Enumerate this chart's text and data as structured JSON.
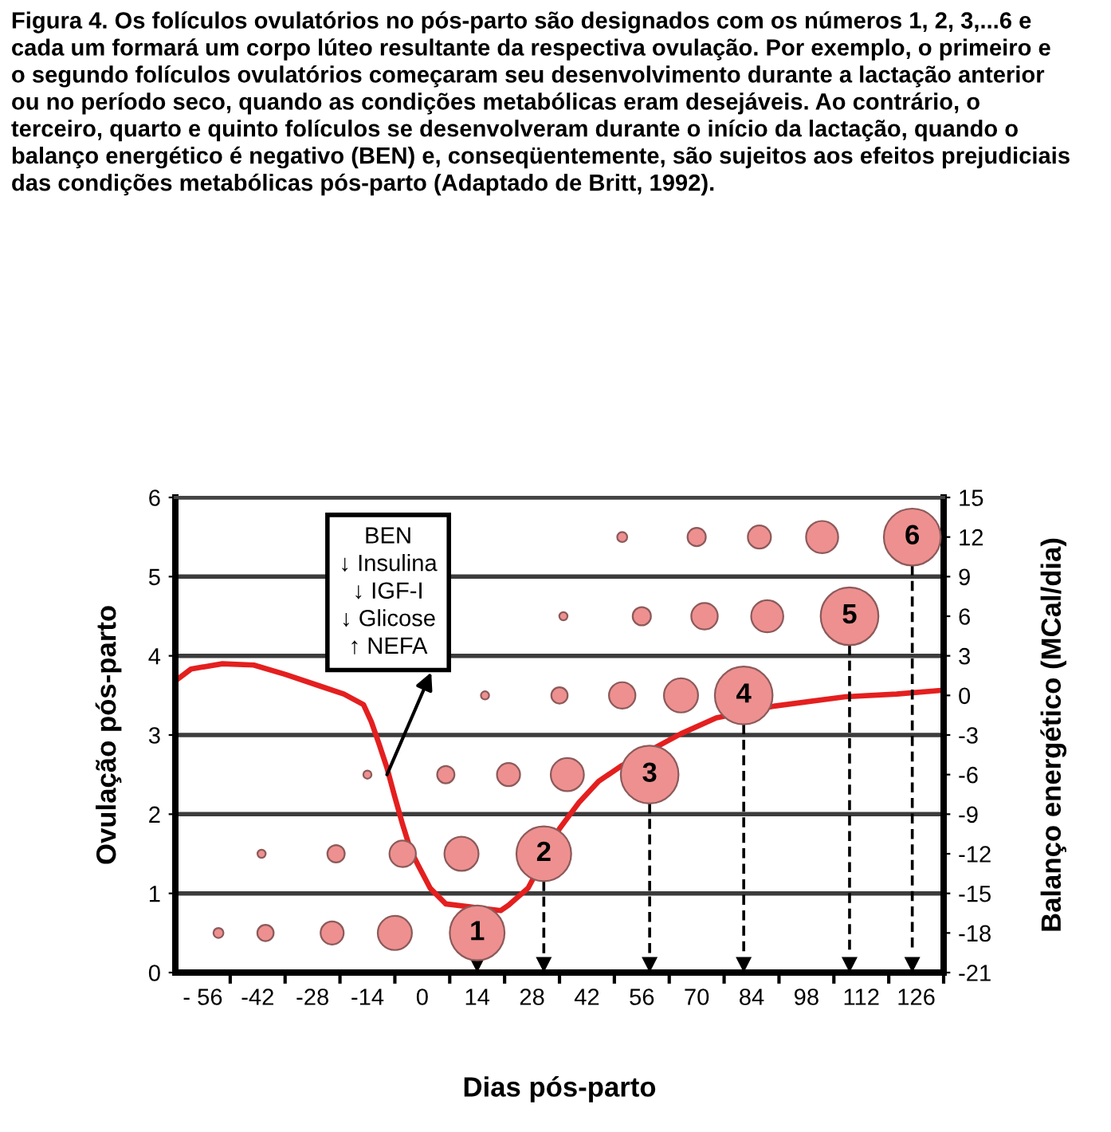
{
  "chart_data": {
    "type": "bubble",
    "title": "Figura 4. Os folículos ovulatórios no pós-parto são designados com os números 1, 2, 3,...6 e cada um formará um corpo lúteo resultante da respectiva ovulação. Por exemplo, o primeiro e o segundo folículos ovulatórios começaram seu desenvolvimento durante a lactação anterior ou no período seco, quando as condições metabólicas eram desejáveis. Ao contrário, o terceiro, quarto e quinto folículos se desenvolveram durante o início da lactação, quando o balanço energético é negativo (BEN) e, conseqüentemente, são sujeitos aos efeitos prejudiciais das condições metabólicas pós-parto (Adaptado de Britt, 1992).",
    "xlabel": "Dias pós-parto",
    "ylabel": "Ovulação pós-parto",
    "y2label": "Balanço energético (MCal/dia)",
    "xlim": [
      -63,
      133
    ],
    "xticks": [
      {
        "value": -56,
        "label": "- 56"
      },
      {
        "value": -49,
        "label": null
      },
      -42,
      {
        "value": -35,
        "label": null
      },
      -28,
      {
        "value": -21,
        "label": null
      },
      -14,
      {
        "value": -7,
        "label": null
      },
      0,
      {
        "value": 7,
        "label": null
      },
      14,
      {
        "value": 21,
        "label": null
      },
      28,
      {
        "value": 35,
        "label": null
      },
      42,
      {
        "value": 49,
        "label": null
      },
      56,
      {
        "value": 63,
        "label": null
      },
      70,
      {
        "value": 77,
        "label": null
      },
      84,
      {
        "value": 91,
        "label": null
      },
      98,
      {
        "value": 105,
        "label": null
      },
      112,
      {
        "value": 119,
        "label": null
      },
      126,
      {
        "value": 133,
        "label": null
      }
    ],
    "ylim": [
      0,
      6
    ],
    "yticks": [
      0,
      1,
      2,
      3,
      4,
      5,
      6
    ],
    "y2lim": [
      -21,
      15
    ],
    "y2ticks": [
      -21,
      -18,
      -15,
      -12,
      -9,
      -6,
      -3,
      0,
      3,
      6,
      9,
      12,
      15
    ],
    "grid": "y",
    "series": [
      {
        "marker": "circle",
        "color": "#ee9090",
        "x": [
          -52,
          -40,
          -23,
          -7,
          14,
          -41,
          -22,
          -5,
          10,
          31,
          -14,
          6,
          22,
          37,
          58,
          16,
          35,
          51,
          66,
          82,
          36,
          56,
          72,
          88,
          109,
          51,
          70,
          86,
          102,
          125
        ],
        "values": [
          0.5,
          0.5,
          0.5,
          0.5,
          0.5,
          1.5,
          1.5,
          1.5,
          1.5,
          1.5,
          2.5,
          2.5,
          2.5,
          2.5,
          2.5,
          3.5,
          3.5,
          3.5,
          3.5,
          3.5,
          4.5,
          4.5,
          4.5,
          4.5,
          4.5,
          5.5,
          5.5,
          5.5,
          5.5,
          5.5
        ],
        "sizes": [
          0.03,
          0.08,
          0.16,
          0.35,
          0.9,
          0.02,
          0.09,
          0.21,
          0.35,
          0.9,
          0.02,
          0.09,
          0.16,
          0.33,
          1,
          0.02,
          0.08,
          0.21,
          0.35,
          1,
          0.02,
          0.1,
          0.21,
          0.31,
          1,
          0.03,
          0.1,
          0.16,
          0.31,
          0.97
        ]
      },
      {
        "type": "line",
        "axis": "y2",
        "line_style": "solid",
        "color": "#e41f1f",
        "x": [
          -63,
          -59,
          -51,
          -43,
          -35,
          -26,
          -20,
          -15,
          -13,
          -11,
          -9,
          -7,
          -5,
          -3,
          -1,
          2,
          6,
          20,
          22,
          27,
          35,
          40,
          45,
          51,
          66,
          75,
          90,
          108,
          121,
          133
        ],
        "values": [
          1.1,
          2.0,
          2.4,
          2.3,
          1.6,
          0.7,
          0.1,
          -0.7,
          -2.0,
          -3.7,
          -5.5,
          -7.7,
          -9.8,
          -11.7,
          -12.9,
          -14.6,
          -15.8,
          -16.3,
          -15.9,
          -14.6,
          -10.1,
          -8.1,
          -6.5,
          -5.3,
          -2.9,
          -1.7,
          -0.8,
          -0.1,
          0.1,
          0.4
        ]
      }
    ],
    "annotations": [
      {
        "text": "1",
        "x": 14,
        "y": 0.5
      },
      {
        "text": "2",
        "x": 31,
        "y": 1.5
      },
      {
        "text": "3",
        "x": 58,
        "y": 2.5
      },
      {
        "text": "4",
        "x": 82,
        "y": 3.5
      },
      {
        "text": "5",
        "x": 109,
        "y": 4.5
      },
      {
        "text": "6",
        "x": 125,
        "y": 5.5
      },
      {
        "text": "BEN\n↓ Insulina\n↓ IGF-I\n↓ Glicose\n↑ NEFA",
        "x": -9,
        "y": 2.5
      }
    ]
  }
}
